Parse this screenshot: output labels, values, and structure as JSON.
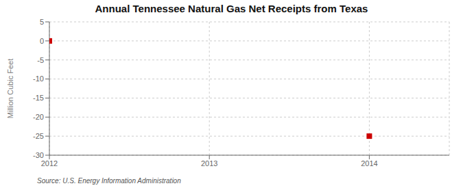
{
  "chart_data": {
    "type": "scatter",
    "title": "Annual Tennessee Natural Gas Net Receipts from Texas",
    "ylabel": "Million Cubic Feet",
    "annotations": [
      "Source: U.S. Energy Information Administration"
    ],
    "x": [
      2012,
      2014
    ],
    "values": [
      0,
      -25
    ],
    "xlim": [
      2012,
      2014.5
    ],
    "ylim": [
      -30,
      5
    ],
    "xticks": [
      2012,
      2013,
      2014
    ],
    "yticks": [
      5,
      0,
      -5,
      -10,
      -15,
      -20,
      -25,
      -30
    ],
    "color": "#cc0000",
    "marker": "square",
    "grid": true
  }
}
